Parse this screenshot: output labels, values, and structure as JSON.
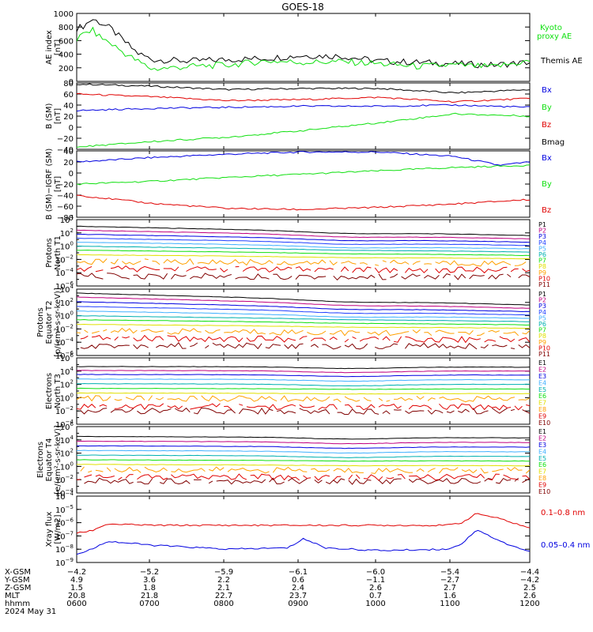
{
  "title": "GOES-18",
  "colors": {
    "black": "#000000",
    "red": "#e00000",
    "green": "#10e010",
    "blue": "#0000e0",
    "kyoto": "#10e010"
  },
  "chart_data": [
    {
      "type": "line",
      "panel": "AE",
      "ylabel": [
        "AE index",
        "[nT]"
      ],
      "ylim": [
        0,
        1000
      ],
      "yticks": [
        "1000",
        "800",
        "600",
        "400",
        "200",
        "0"
      ],
      "legend": [
        {
          "label": "Kyoto",
          "color": "#10e010"
        },
        {
          "label": "proxy AE",
          "color": "#10e010"
        },
        {
          "label": "Themis AE",
          "color": "#000000"
        }
      ],
      "series": [
        {
          "name": "Themis AE",
          "color": "#000000",
          "x": [
            0,
            0.1,
            0.2,
            0.3,
            0.45,
            0.6,
            0.8,
            1.0,
            1.5,
            2.0,
            2.5,
            3.0,
            3.5,
            4.0,
            4.5,
            5.0,
            5.5,
            6.0
          ],
          "y": [
            780,
            820,
            920,
            870,
            780,
            620,
            420,
            320,
            300,
            320,
            340,
            380,
            370,
            300,
            280,
            260,
            240,
            280
          ]
        },
        {
          "name": "Kyoto proxy AE",
          "color": "#10e010",
          "x": [
            0,
            0.1,
            0.2,
            0.3,
            0.45,
            0.6,
            0.8,
            1.0,
            1.5,
            2.0,
            2.5,
            3.0,
            3.5,
            4.0,
            4.5,
            5.0,
            5.5,
            6.0
          ],
          "y": [
            620,
            700,
            760,
            660,
            560,
            440,
            300,
            180,
            220,
            240,
            300,
            280,
            290,
            260,
            220,
            240,
            210,
            300
          ]
        }
      ]
    },
    {
      "type": "line",
      "panel": "B_SM",
      "ylabel": [
        "B (SM)",
        "[nT]"
      ],
      "ylim": [
        -40,
        80
      ],
      "yticks": [
        "80",
        "60",
        "40",
        "20",
        "0",
        "−20",
        "−40"
      ],
      "legend": [
        {
          "label": "Bx",
          "color": "#0000e0"
        },
        {
          "label": "By",
          "color": "#10e010"
        },
        {
          "label": "Bz",
          "color": "#e00000"
        },
        {
          "label": "Bmag",
          "color": "#000000"
        }
      ],
      "series": [
        {
          "name": "Bmag",
          "color": "#000000",
          "x": [
            0,
            1,
            2,
            3,
            4,
            5,
            6
          ],
          "y": [
            78,
            74,
            68,
            70,
            70,
            62,
            68
          ]
        },
        {
          "name": "Bz",
          "color": "#e00000",
          "x": [
            0,
            1,
            2,
            3,
            4,
            5,
            6
          ],
          "y": [
            60,
            55,
            48,
            50,
            54,
            46,
            52
          ]
        },
        {
          "name": "Bx",
          "color": "#0000e0",
          "x": [
            0,
            1,
            2,
            3,
            4,
            5,
            6
          ],
          "y": [
            30,
            34,
            36,
            38,
            38,
            40,
            36
          ]
        },
        {
          "name": "By",
          "color": "#10e010",
          "x": [
            0,
            1,
            2,
            3,
            4,
            5,
            6
          ],
          "y": [
            -36,
            -26,
            -18,
            -6,
            8,
            24,
            20
          ]
        }
      ]
    },
    {
      "type": "line",
      "panel": "B_minus_IGRF",
      "ylabel": [
        "B (SM)−IGRF (SM)",
        "[nT]"
      ],
      "ylim": [
        -80,
        40
      ],
      "yticks": [
        "40",
        "20",
        "0",
        "−20",
        "−40",
        "−60",
        "−80"
      ],
      "legend": [
        {
          "label": "Bx",
          "color": "#0000e0"
        },
        {
          "label": "By",
          "color": "#10e010"
        },
        {
          "label": "Bz",
          "color": "#e00000"
        }
      ],
      "series": [
        {
          "name": "Bx",
          "color": "#0000e0",
          "x": [
            0,
            1,
            2,
            3,
            4,
            5,
            5.6,
            6
          ],
          "y": [
            20,
            28,
            34,
            38,
            38,
            30,
            14,
            20
          ]
        },
        {
          "name": "By",
          "color": "#10e010",
          "x": [
            0,
            1,
            2,
            3,
            4,
            5,
            6
          ],
          "y": [
            -20,
            -15,
            -8,
            -2,
            4,
            10,
            14
          ]
        },
        {
          "name": "Bz",
          "color": "#e00000",
          "x": [
            0,
            1,
            2,
            3,
            4,
            5,
            6
          ],
          "y": [
            -40,
            -55,
            -64,
            -66,
            -62,
            -56,
            -48
          ]
        }
      ]
    },
    {
      "type": "line",
      "panel": "Protons North T1",
      "log": true,
      "ylabel": [
        "Protons",
        "North T1"
      ],
      "ylim_exp": [
        -6,
        4
      ],
      "ytick_exps": [
        4,
        2,
        0,
        -2,
        -4,
        -6
      ],
      "channels": [
        {
          "label": "P1",
          "color": "#000000",
          "start": 3.0,
          "end": 1.6
        },
        {
          "label": "P2",
          "color": "#c00080",
          "start": 2.4,
          "end": 1.1
        },
        {
          "label": "P3",
          "color": "#0000e0",
          "start": 1.8,
          "end": 0.6
        },
        {
          "label": "P4",
          "color": "#2040ff",
          "start": 1.2,
          "end": 0.1
        },
        {
          "label": "P5",
          "color": "#40b0ff",
          "start": 0.6,
          "end": -0.4
        },
        {
          "label": "P6",
          "color": "#00b0b0",
          "start": 0.0,
          "end": -0.9
        },
        {
          "label": "P7",
          "color": "#10e010",
          "start": -0.6,
          "end": -1.4
        },
        {
          "label": "P8",
          "color": "#e0e000",
          "start": -1.3,
          "end": -1.9
        },
        {
          "label": "P9",
          "color": "#ffa000",
          "start": -2.3,
          "end": -2.6
        },
        {
          "label": "P10",
          "color": "#e00000",
          "start": -3.4,
          "end": -3.6
        },
        {
          "label": "P11",
          "color": "#800000",
          "start": -4.5,
          "end": -4.6
        }
      ]
    },
    {
      "type": "line",
      "panel": "Protons Equator T2",
      "log": true,
      "ylabel": [
        "Protons",
        "Equator T2",
        "[p/(cm²-s-sr-keV)]"
      ],
      "ylim_exp": [
        -6,
        4
      ],
      "ytick_exps": [
        4,
        2,
        0,
        -2,
        -4,
        -6
      ],
      "channels": [
        {
          "label": "P1",
          "color": "#000000",
          "start": 3.4,
          "end": 1.6
        },
        {
          "label": "P2",
          "color": "#c00080",
          "start": 2.8,
          "end": 1.1
        },
        {
          "label": "P3",
          "color": "#0000e0",
          "start": 2.1,
          "end": 0.6
        },
        {
          "label": "P4",
          "color": "#2040ff",
          "start": 1.4,
          "end": 0.1
        },
        {
          "label": "P5",
          "color": "#40b0ff",
          "start": 0.7,
          "end": -0.4
        },
        {
          "label": "P6",
          "color": "#00b0b0",
          "start": 0.0,
          "end": -0.9
        },
        {
          "label": "P7",
          "color": "#10e010",
          "start": -0.6,
          "end": -1.4
        },
        {
          "label": "P8",
          "color": "#e0e000",
          "start": -1.3,
          "end": -1.9
        },
        {
          "label": "P9",
          "color": "#ffa000",
          "start": -2.3,
          "end": -2.6
        },
        {
          "label": "P10",
          "color": "#e00000",
          "start": -3.4,
          "end": -3.6
        },
        {
          "label": "P11",
          "color": "#800000",
          "start": -4.5,
          "end": -4.6
        }
      ]
    },
    {
      "type": "line",
      "panel": "Electrons North T3",
      "log": true,
      "ylabel": [
        "Electrons",
        "North T3"
      ],
      "ylim_exp": [
        -4,
        6
      ],
      "ytick_exps": [
        6,
        4,
        2,
        0,
        -2,
        -4
      ],
      "channels": [
        {
          "label": "E1",
          "color": "#000000",
          "start": 4.7,
          "end": 4.6
        },
        {
          "label": "E2",
          "color": "#c00080",
          "start": 4.1,
          "end": 4.0
        },
        {
          "label": "E3",
          "color": "#0000e0",
          "start": 3.5,
          "end": 3.4
        },
        {
          "label": "E4",
          "color": "#40b0ff",
          "start": 2.8,
          "end": 2.7
        },
        {
          "label": "E5",
          "color": "#00b0b0",
          "start": 2.1,
          "end": 2.0
        },
        {
          "label": "E6",
          "color": "#10e010",
          "start": 1.4,
          "end": 1.3
        },
        {
          "label": "E7",
          "color": "#e0e000",
          "start": 0.7,
          "end": 0.6
        },
        {
          "label": "E8",
          "color": "#ffa000",
          "start": -0.1,
          "end": -0.2
        },
        {
          "label": "E9",
          "color": "#e00000",
          "start": -1.3,
          "end": -1.4
        },
        {
          "label": "E10",
          "color": "#800000",
          "start": -2.0,
          "end": -2.0
        }
      ]
    },
    {
      "type": "line",
      "panel": "Electrons Equator T4",
      "log": true,
      "ylabel": [
        "Electrons",
        "Equator T4",
        "[e/(cm²-s-sr-keV)]"
      ],
      "ylim_exp": [
        -4,
        6
      ],
      "ytick_exps": [
        6,
        4,
        2,
        0,
        -2,
        -4
      ],
      "channels": [
        {
          "label": "E1",
          "color": "#000000",
          "start": 4.5,
          "end": 4.3
        },
        {
          "label": "E2",
          "color": "#c00080",
          "start": 3.8,
          "end": 3.6
        },
        {
          "label": "E3",
          "color": "#0000e0",
          "start": 3.1,
          "end": 2.9
        },
        {
          "label": "E4",
          "color": "#40b0ff",
          "start": 2.4,
          "end": 2.2
        },
        {
          "label": "E5",
          "color": "#00b0b0",
          "start": 1.7,
          "end": 1.5
        },
        {
          "label": "E6",
          "color": "#10e010",
          "start": 1.0,
          "end": 0.8
        },
        {
          "label": "E7",
          "color": "#e0e000",
          "start": 0.3,
          "end": 0.1
        },
        {
          "label": "E8",
          "color": "#ffa000",
          "start": -0.5,
          "end": -0.6
        },
        {
          "label": "E9",
          "color": "#e00000",
          "start": -1.6,
          "end": -1.6
        },
        {
          "label": "E10",
          "color": "#800000",
          "start": -2.2,
          "end": -2.2
        }
      ]
    },
    {
      "type": "line",
      "panel": "Xray",
      "log": true,
      "ylabel": [
        "Xray flux",
        "[W/m2]"
      ],
      "ylim_exp": [
        -9,
        -4
      ],
      "ytick_exps": [
        -4,
        -5,
        -6,
        -7,
        -8,
        -9
      ],
      "legend": [
        {
          "label": "0.1–0.8 nm",
          "color": "#e00000"
        },
        {
          "label": "0.05–0.4 nm",
          "color": "#0000e0"
        }
      ],
      "series": [
        {
          "name": "0.1–0.8 nm",
          "color": "#e00000",
          "x": [
            0,
            0.2,
            0.4,
            1,
            2,
            3,
            4,
            4.9,
            5.1,
            5.3,
            5.6,
            6
          ],
          "y": [
            -6.8,
            -6.6,
            -6.1,
            -6.2,
            -6.2,
            -6.2,
            -6.2,
            -6.2,
            -6.0,
            -5.3,
            -5.7,
            -6.4
          ]
        },
        {
          "name": "0.05–0.4 nm",
          "color": "#0000e0",
          "x": [
            0,
            0.2,
            0.4,
            1,
            2,
            2.8,
            3.0,
            3.3,
            4,
            4.9,
            5.1,
            5.3,
            5.6,
            6
          ],
          "y": [
            -8.4,
            -8.0,
            -7.4,
            -7.7,
            -8.0,
            -7.9,
            -7.2,
            -7.9,
            -8.1,
            -8.0,
            -7.6,
            -6.5,
            -7.4,
            -8.2
          ]
        }
      ]
    }
  ],
  "xaxis": {
    "row_labels": [
      "X-GSM",
      "Y-GSM",
      "Z-GSM",
      "MLT",
      "hhmm"
    ],
    "date": "2024 May 31",
    "columns": [
      [
        "−4.2",
        "4.9",
        "1.5",
        "20.8",
        "0600"
      ],
      [
        "−5.2",
        "3.6",
        "1.8",
        "21.8",
        "0700"
      ],
      [
        "−5.9",
        "2.2",
        "2.1",
        "22.7",
        "0800"
      ],
      [
        "−6.1",
        "0.6",
        "2.4",
        "23.7",
        "0900"
      ],
      [
        "−6.0",
        "−1.1",
        "2.6",
        "0.7",
        "1000"
      ],
      [
        "−5.4",
        "−2.7",
        "2.7",
        "1.6",
        "1100"
      ],
      [
        "−4.4",
        "−4.2",
        "2.5",
        "2.6",
        "1200"
      ]
    ]
  }
}
